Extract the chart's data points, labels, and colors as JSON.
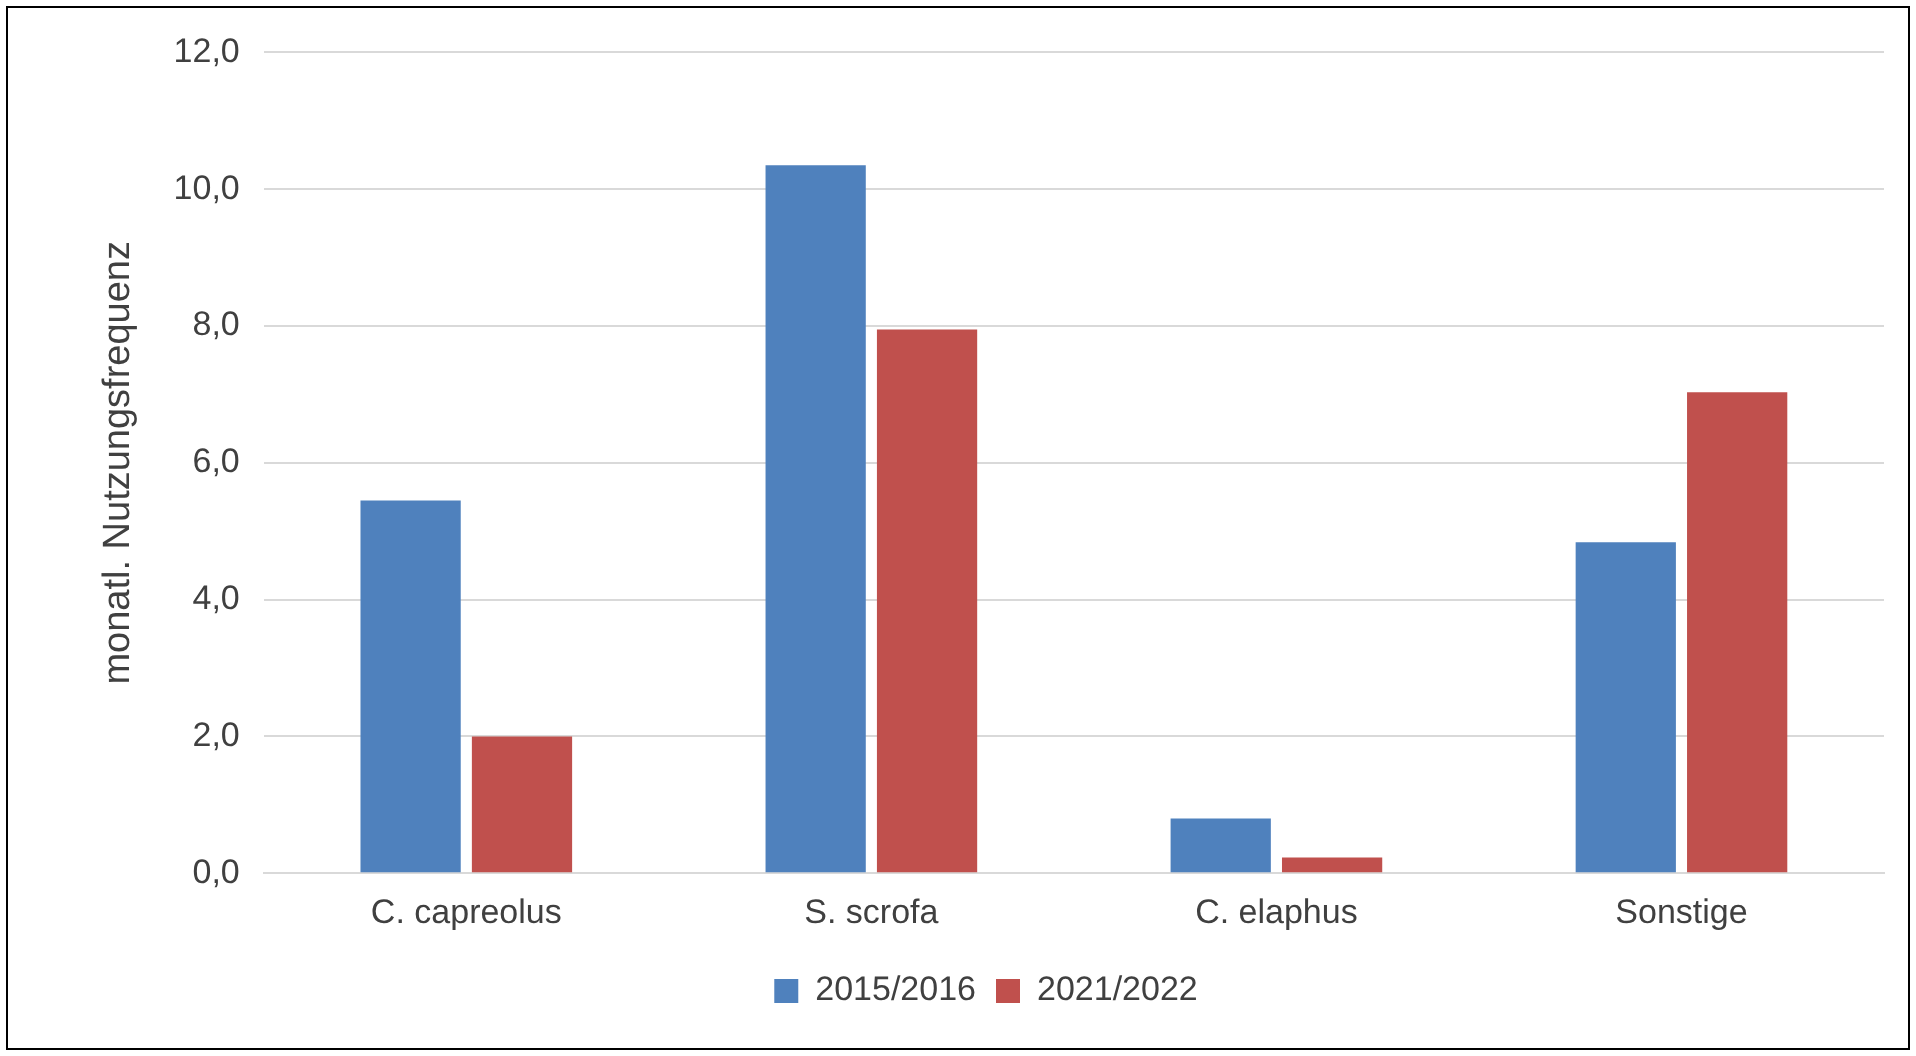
{
  "chart_data": {
    "type": "bar",
    "ylabel": "monatl. Nutzungsfrequenz",
    "categories": [
      "C. capreolus",
      "S. scrofa",
      "C. elaphus",
      "Sonstige"
    ],
    "series": [
      {
        "name": "2015/2016",
        "color": "#4f81bd",
        "values": [
          5.45,
          10.35,
          0.8,
          4.84
        ]
      },
      {
        "name": "2021/2022",
        "color": "#c0504d",
        "values": [
          2.0,
          7.95,
          0.23,
          7.03
        ]
      }
    ],
    "ylim": [
      0,
      12
    ],
    "yticks": [
      {
        "value": 0,
        "label": "0,0"
      },
      {
        "value": 2,
        "label": "2,0"
      },
      {
        "value": 4,
        "label": "4,0"
      },
      {
        "value": 6,
        "label": "6,0"
      },
      {
        "value": 8,
        "label": "8,0"
      },
      {
        "value": 10,
        "label": "10,0"
      },
      {
        "value": 12,
        "label": "12,0"
      }
    ],
    "grid": "y",
    "legend": "bottom"
  }
}
